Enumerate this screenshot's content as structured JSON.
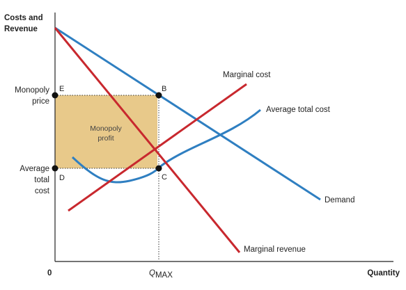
{
  "axes": {
    "y_label_line1": "Costs and",
    "y_label_line2": "Revenue",
    "x_label": "Quantity",
    "origin": "0",
    "qmax_main": "Q",
    "qmax_sub": "MAX",
    "monopoly_price_line1": "Monopoly",
    "monopoly_price_line2": "price",
    "atc_line1": "Average",
    "atc_line2": "total",
    "atc_line3": "cost"
  },
  "points": {
    "e": "E",
    "b": "B",
    "d": "D",
    "c": "C"
  },
  "region": {
    "label_line1": "Monopoly",
    "label_line2": "profit",
    "fill_color": "#e8c98a"
  },
  "curves": {
    "marginal_cost": {
      "label": "Marginal cost",
      "color": "#c8282e"
    },
    "average_total_cost": {
      "label": "Average total cost",
      "color": "#2f7fc1"
    },
    "demand": {
      "label": "Demand",
      "color": "#2f7fc1"
    },
    "marginal_revenue": {
      "label": "Marginal revenue",
      "color": "#c8282e"
    }
  }
}
